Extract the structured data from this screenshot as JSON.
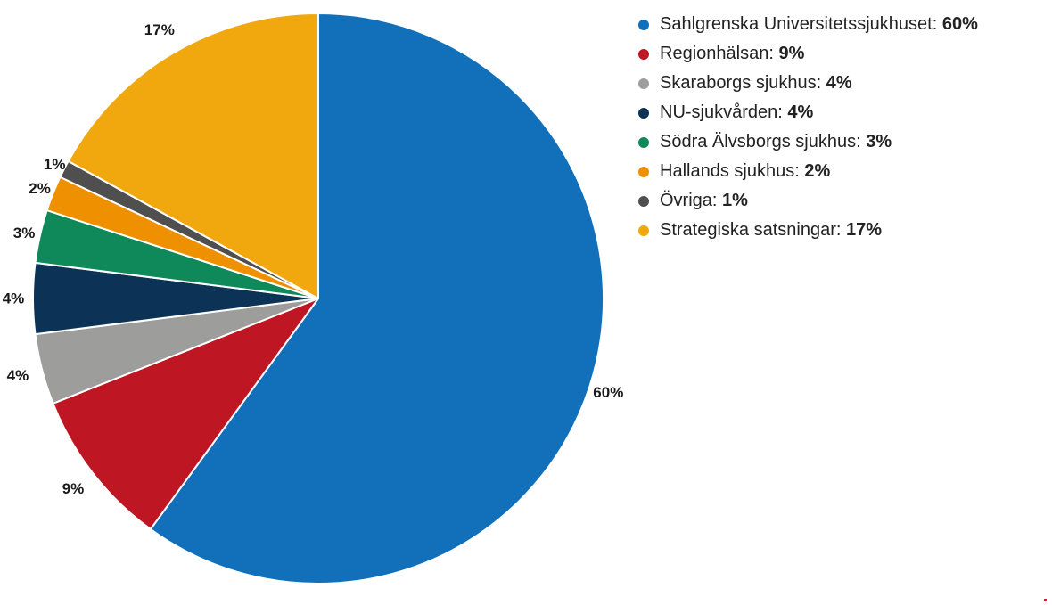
{
  "chart_data": {
    "type": "pie",
    "title": "",
    "start_angle_deg": 0,
    "direction": "clockwise",
    "legend_position": "top-right",
    "slices": [
      {
        "name": "Sahlgrenska Universitetssjukhuset",
        "value": 60,
        "label": "60%",
        "legend_sep": ": ",
        "color": "#1170b9"
      },
      {
        "name": "Regionhälsan",
        "value": 9,
        "label": "9%",
        "legend_sep": ": ",
        "color": "#be1622"
      },
      {
        "name": "Skaraborgs sjukhus",
        "value": 4,
        "label": "4%",
        "legend_sep": ": ",
        "color": "#9d9d9c"
      },
      {
        "name": "NU-sjukvården",
        "value": 4,
        "label": "4%",
        "legend_sep": ": ",
        "color": "#0c3356"
      },
      {
        "name": "Södra Älvsborgs sjukhus",
        "value": 3,
        "label": "3%",
        "legend_sep": ": ",
        "color": "#10895a"
      },
      {
        "name": "Hallands sjukhus",
        "value": 2,
        "label": "2%",
        "legend_sep": ": ",
        "color": "#ee9000"
      },
      {
        "name": "Övriga",
        "value": 1,
        "label": "1%",
        "legend_sep": ": ",
        "color": "#4f4f4f"
      },
      {
        "name": "Strategiska satsningar",
        "value": 17,
        "label": "17%",
        "legend_sep": ": ",
        "color": "#f1a80f"
      }
    ]
  }
}
